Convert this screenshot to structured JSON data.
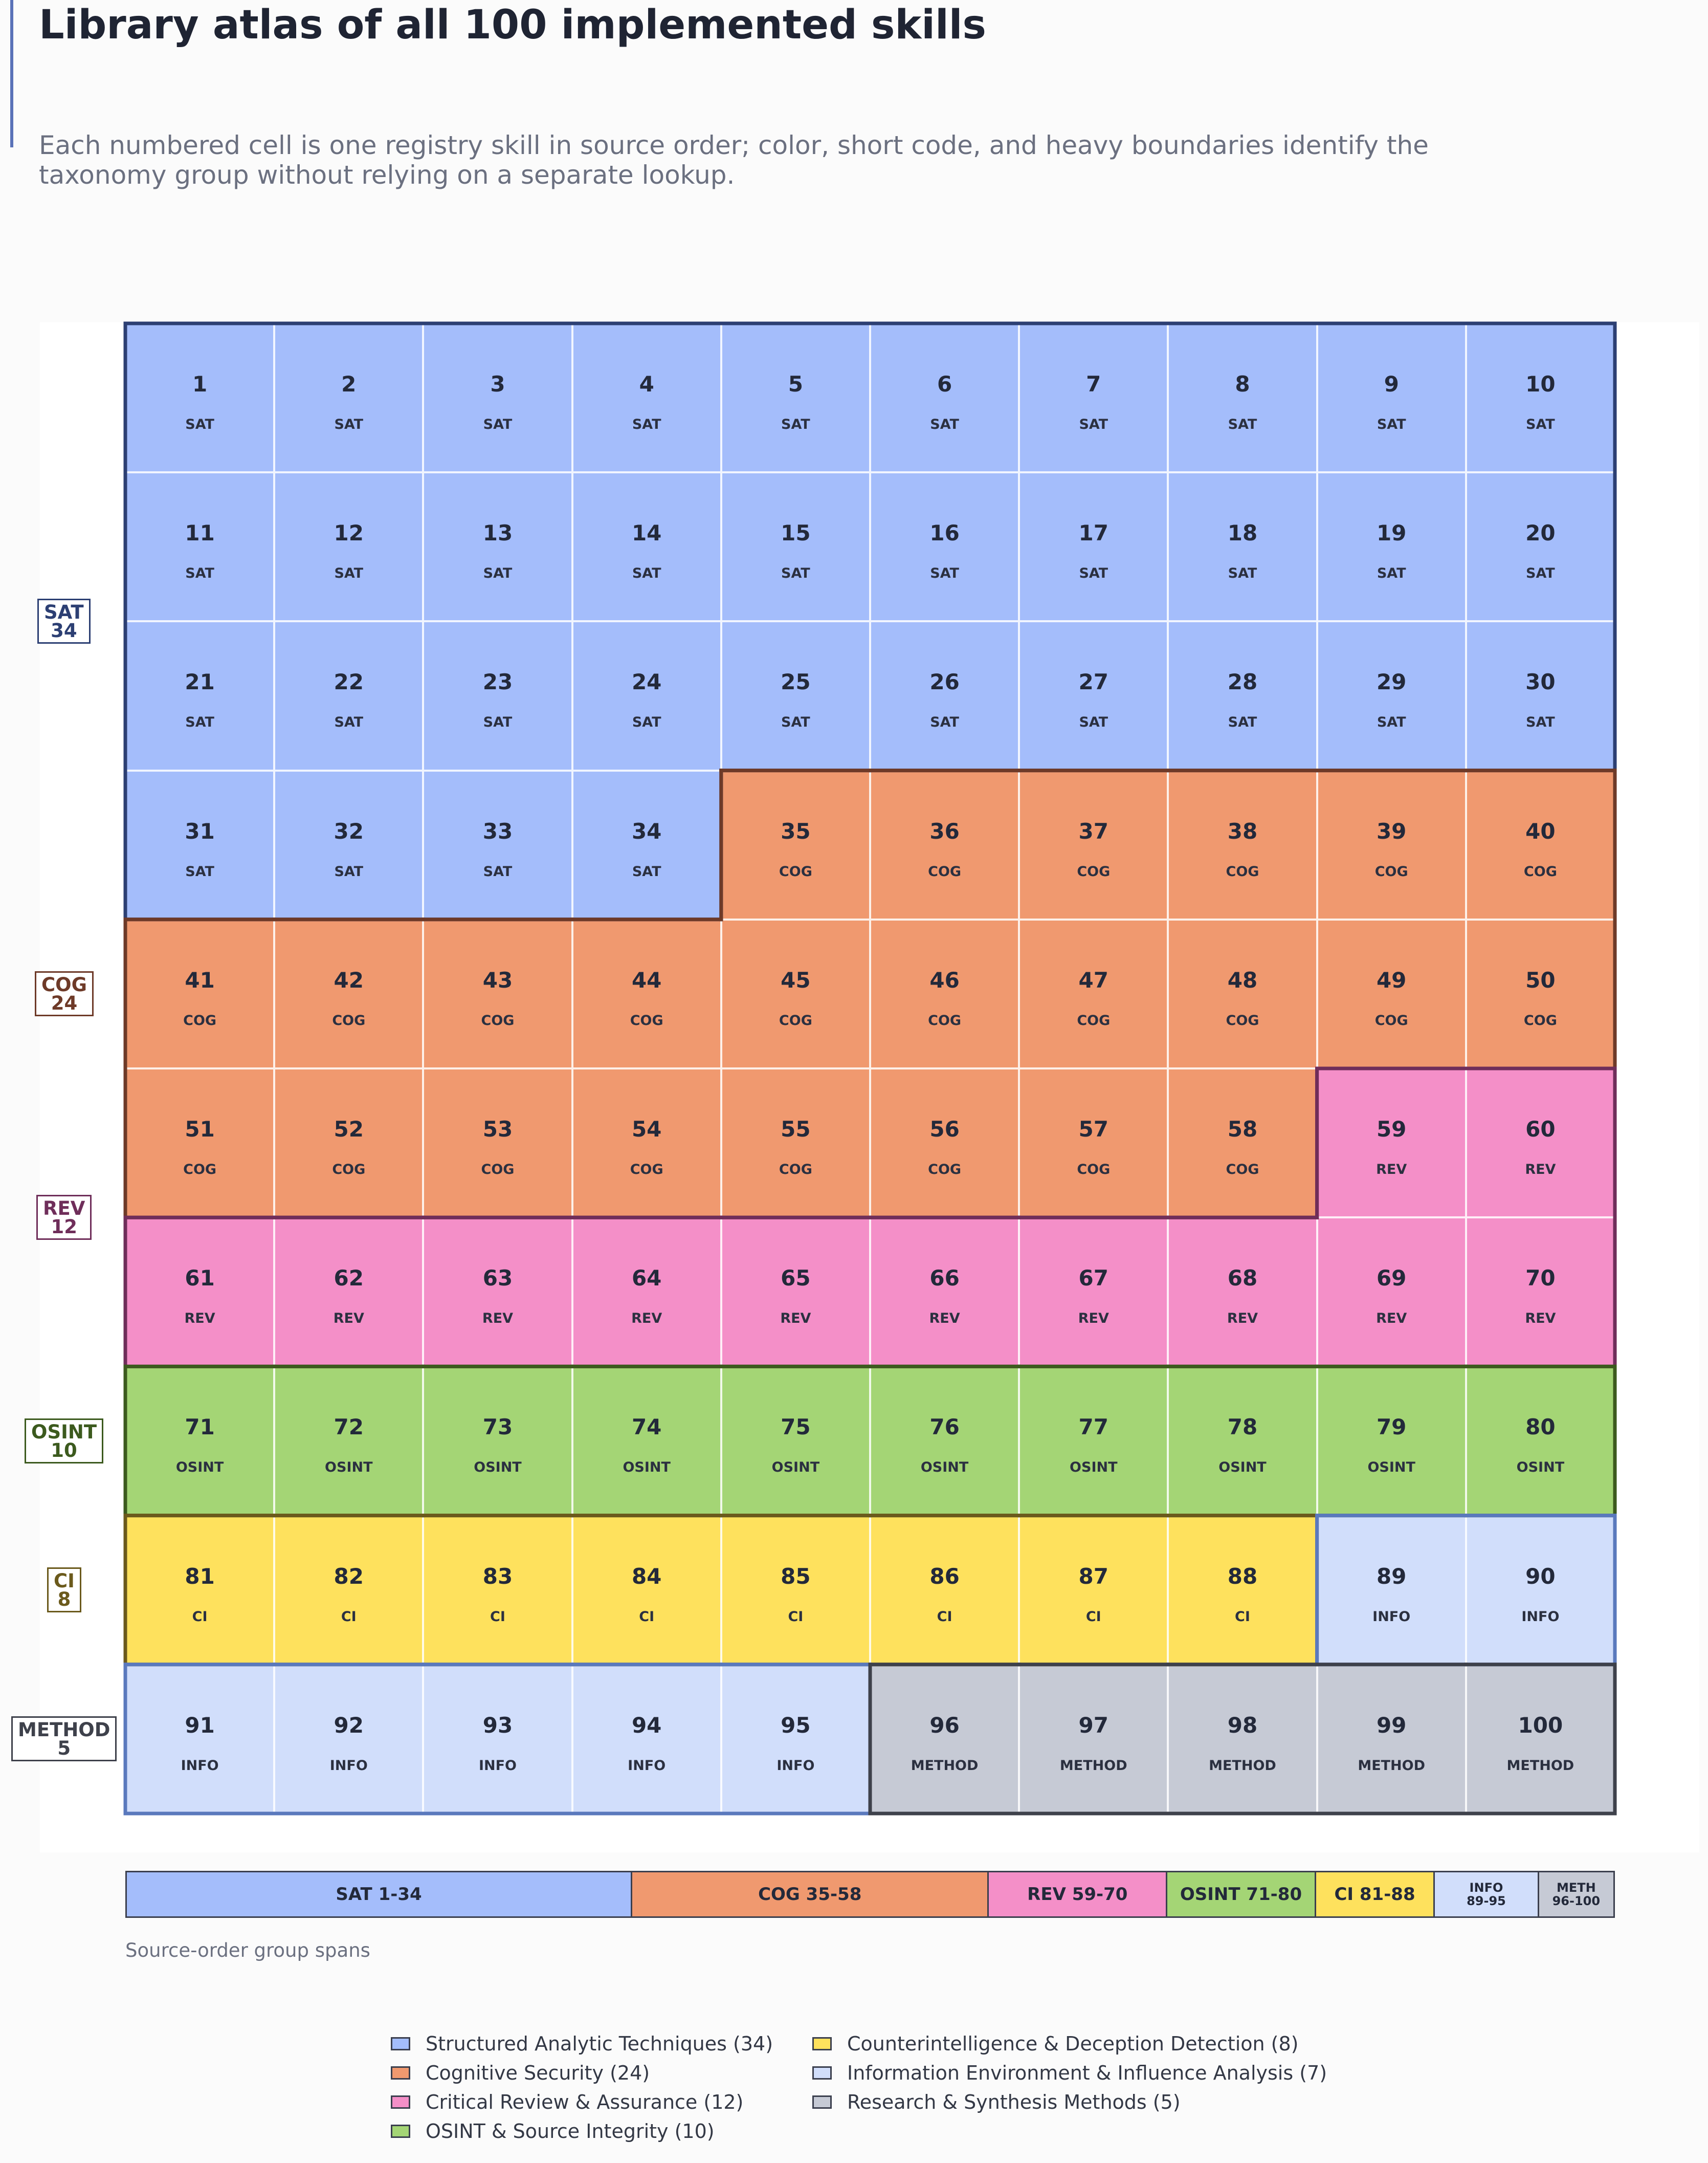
{
  "header": {
    "title": "Library atlas of all 100 implemented skills",
    "subtitle": "Each numbered cell is one registry skill in source order; color, short code, and heavy boundaries identify the taxonomy group without relying on a separate lookup."
  },
  "groups": [
    {
      "code": "SAT",
      "name": "Structured Analytic Techniques",
      "legend": "Structured Analytic Techniques (34)",
      "start": 1,
      "end": 34,
      "count": 34,
      "fill": "#a4bdfb",
      "border": "#2c3f73",
      "row_label_code": "SAT",
      "row_label_count": "34",
      "span_label": "SAT 1-34",
      "span_label_2": ""
    },
    {
      "code": "COG",
      "name": "Cognitive Security",
      "legend": "Cognitive Security (24)",
      "start": 35,
      "end": 58,
      "count": 24,
      "fill": "#f0996f",
      "border": "#6e3a28",
      "row_label_code": "COG",
      "row_label_count": "24",
      "span_label": "COG 35-58",
      "span_label_2": ""
    },
    {
      "code": "REV",
      "name": "Critical Review & Assurance",
      "legend": "Critical Review & Assurance (12)",
      "start": 59,
      "end": 70,
      "count": 12,
      "fill": "#f48fc8",
      "border": "#6f2e5a",
      "row_label_code": "REV",
      "row_label_count": "12",
      "span_label": "REV 59-70",
      "span_label_2": ""
    },
    {
      "code": "OSINT",
      "name": "OSINT & Source Integrity",
      "legend": "OSINT & Source Integrity (10)",
      "start": 71,
      "end": 80,
      "count": 10,
      "fill": "#a4d575",
      "border": "#3c5a1e",
      "row_label_code": "OSINT",
      "row_label_count": "10",
      "span_label": "OSINT 71-80",
      "span_label_2": ""
    },
    {
      "code": "CI",
      "name": "Counterintelligence & Deception Detection",
      "legend": "Counterintelligence & Deception Detection (8)",
      "start": 81,
      "end": 88,
      "count": 8,
      "fill": "#fee15d",
      "border": "#6b5a1c",
      "row_label_code": "CI",
      "row_label_count": "8",
      "span_label": "CI 81-88",
      "span_label_2": ""
    },
    {
      "code": "INFO",
      "name": "Information Environment & Influence Analysis",
      "legend": "Information Environment & Influence Analysis (7)",
      "start": 89,
      "end": 95,
      "count": 7,
      "fill": "#d1defb",
      "border": "#5a79bd",
      "row_label_code": "",
      "row_label_count": "",
      "span_label": "INFO",
      "span_label_2": "89-95"
    },
    {
      "code": "METHOD",
      "name": "Research & Synthesis Methods",
      "legend": "Research & Synthesis Methods (5)",
      "start": 96,
      "end": 100,
      "count": 5,
      "fill": "#c6cad5",
      "border": "#3e414b",
      "row_label_code": "METHOD",
      "row_label_count": "5",
      "span_label": "METH",
      "span_label_2": "96-100"
    }
  ],
  "span_caption": "Source-order group spans",
  "legend_order": [
    "SAT",
    "COG",
    "REV",
    "OSINT",
    "CI",
    "INFO",
    "METHOD"
  ]
}
